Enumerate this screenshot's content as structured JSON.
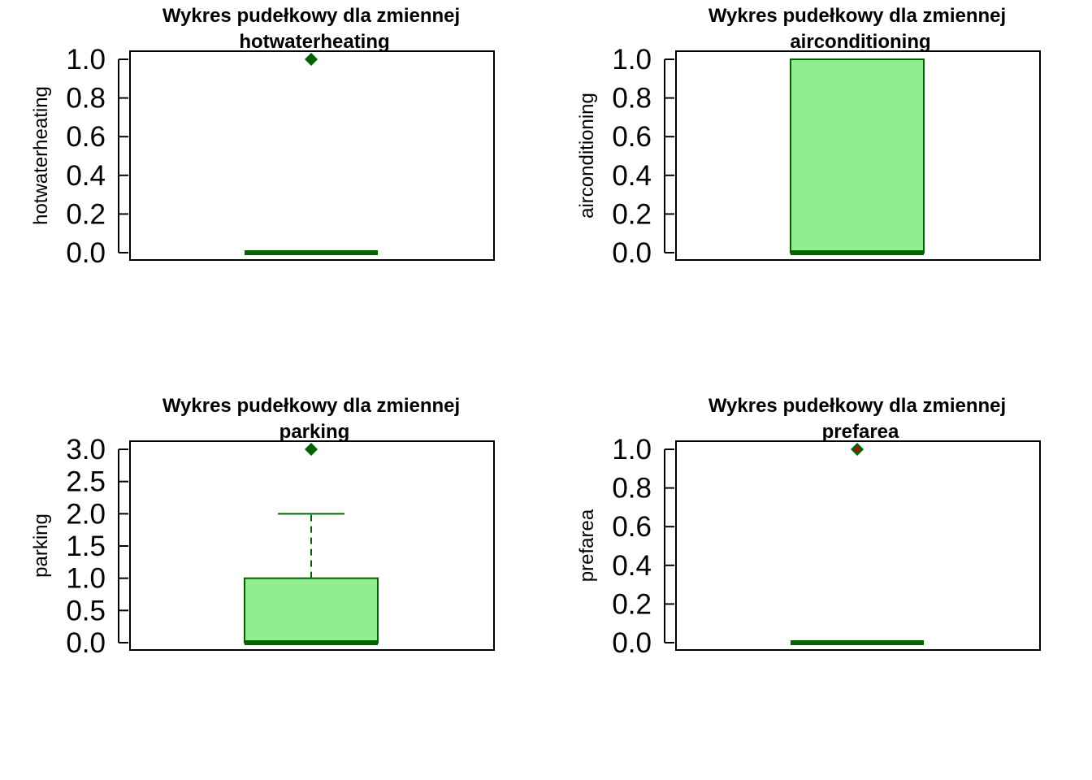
{
  "colors": {
    "box_fill": "#90ee90",
    "box_border": "#006400",
    "median": "#006400",
    "outlier": "#006400",
    "outlier_center": "#cc0000",
    "axis": "#000000",
    "background": "#ffffff"
  },
  "chart_data": [
    {
      "type": "boxplot",
      "title_line1": "Wykres pudełkowy dla zmiennej",
      "title_line2": "hotwaterheating",
      "ylabel": "hotwaterheating",
      "ylim": [
        0,
        1
      ],
      "yticks": [
        0.0,
        0.2,
        0.4,
        0.6,
        0.8,
        1.0
      ],
      "ytick_labels": [
        "0.0",
        "0.2",
        "0.4",
        "0.6",
        "0.8",
        "1.0"
      ],
      "stats": {
        "min": 0,
        "q1": 0,
        "median": 0,
        "q3": 0,
        "max": 0
      },
      "outliers": [
        1
      ]
    },
    {
      "type": "boxplot",
      "title_line1": "Wykres pudełkowy dla zmiennej",
      "title_line2": "airconditioning",
      "ylabel": "airconditioning",
      "ylim": [
        0,
        1
      ],
      "yticks": [
        0.0,
        0.2,
        0.4,
        0.6,
        0.8,
        1.0
      ],
      "ytick_labels": [
        "0.0",
        "0.2",
        "0.4",
        "0.6",
        "0.8",
        "1.0"
      ],
      "stats": {
        "min": 0,
        "q1": 0,
        "median": 0,
        "q3": 1,
        "max": 1
      },
      "outliers": []
    },
    {
      "type": "boxplot",
      "title_line1": "Wykres pudełkowy dla zmiennej",
      "title_line2": "parking",
      "ylabel": "parking",
      "ylim": [
        0,
        3
      ],
      "yticks": [
        0.0,
        0.5,
        1.0,
        1.5,
        2.0,
        2.5,
        3.0
      ],
      "ytick_labels": [
        "0.0",
        "0.5",
        "1.0",
        "1.5",
        "2.0",
        "2.5",
        "3.0"
      ],
      "stats": {
        "min": 0,
        "q1": 0,
        "median": 0,
        "q3": 1,
        "max": 2
      },
      "outliers": [
        3
      ]
    },
    {
      "type": "boxplot",
      "title_line1": "Wykres pudełkowy dla zmiennej",
      "title_line2": "prefarea",
      "ylabel": "prefarea",
      "ylim": [
        0,
        1
      ],
      "yticks": [
        0.0,
        0.2,
        0.4,
        0.6,
        0.8,
        1.0
      ],
      "ytick_labels": [
        "0.0",
        "0.2",
        "0.4",
        "0.6",
        "0.8",
        "1.0"
      ],
      "stats": {
        "min": 0,
        "q1": 0,
        "median": 0,
        "q3": 0,
        "max": 0
      },
      "outliers": [
        1
      ],
      "outlier_marked_center": true
    }
  ]
}
